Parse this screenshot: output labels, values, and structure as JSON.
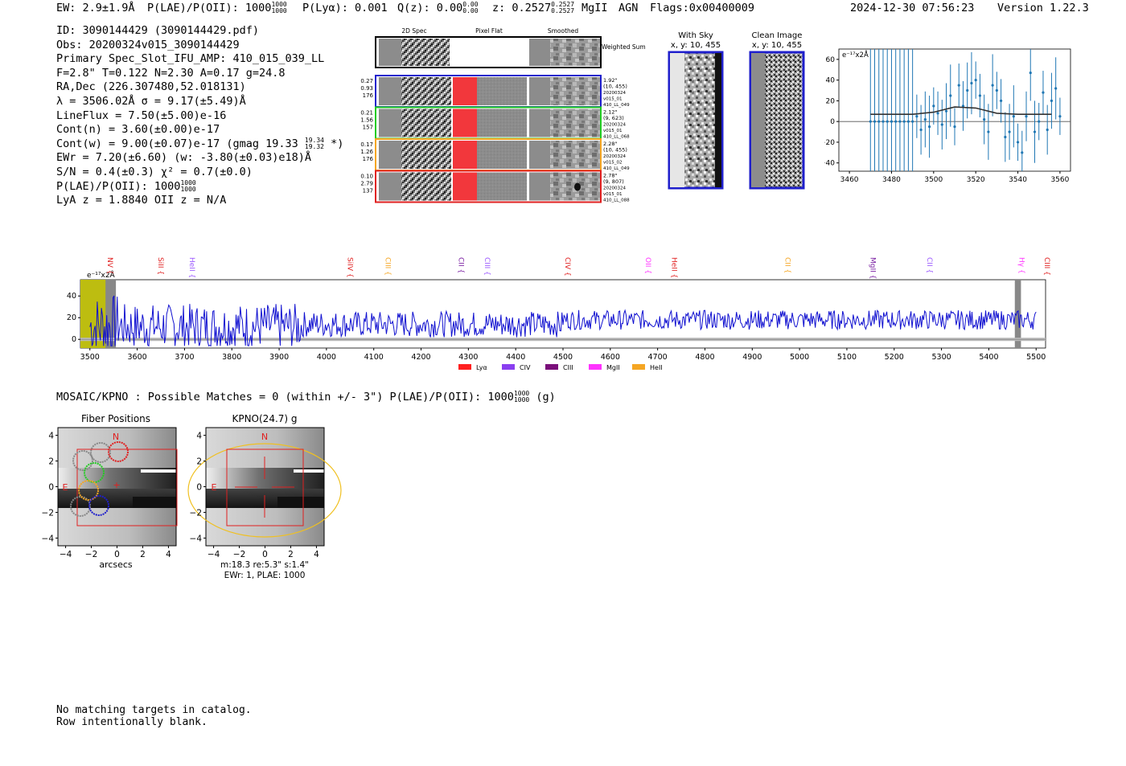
{
  "header": {
    "ew": "EW: 2.9±1.9Å",
    "plae_label": "P(LAE)/P(OII): 1000",
    "plae_hi": "1000",
    "plae_lo": "1000",
    "plya": "P(Lyα): 0.001",
    "qz_label": "Q(z): 0.00",
    "qz_hi": "0.00",
    "qz_lo": "0.00",
    "z_label": "z: 0.2527",
    "z_hi": "0.2527",
    "z_lo": "0.2527",
    "line": "MgII",
    "agn": "AGN",
    "flags": "Flags:0x00400009",
    "timestamp": "2024-12-30 07:56:23",
    "version": "Version 1.22.3"
  },
  "info": {
    "id": "ID: 3090144429 (3090144429.pdf)",
    "obs": "Obs: 20200324v015_3090144429",
    "primary": "Primary Spec_Slot_IFU_AMP: 410_015_039_LL",
    "params": "F=2.8\"  T=0.122  N=2.30  A=0.17  g=24.8",
    "radec": "RA,Dec (226.307480,52.018131)",
    "lambda": "λ = 3506.02Å  σ = 9.17(±5.49)Å",
    "lineflux": "LineFlux = 7.50(±5.00)e-16",
    "contn": "Cont(n) = 3.60(±0.00)e-17",
    "contw_label": "Cont(w) = 9.00(±0.07)e-17 (gmag 19.33",
    "contw_hi": "19.34",
    "contw_lo": "19.32",
    "contw_end": "*)",
    "ewr": "EWr = 7.20(±6.60) (w: -3.80(±0.03)e18)Å",
    "sn": "S/N = 0.4(±0.3)  χ² = 0.7(±0.0)",
    "plae_label": "P(LAE)/P(OII): 1000",
    "plae_hi": "1000",
    "plae_lo": "1000",
    "lyaz": "LyA z = 1.8840  OII z = N/A"
  },
  "cutouts": {
    "col_headers": [
      "2D Spec",
      "Pixel Flat",
      "Smoothed"
    ],
    "weighted_sum": "Weighted Sum",
    "rows": [
      {
        "left": [
          "0.27",
          "0.93",
          "176"
        ],
        "right": [
          "1.92\"",
          "(10, 455)",
          "20200324",
          "v015_01",
          "410_LL_049"
        ],
        "color": "#1f1fcc"
      },
      {
        "left": [
          "0.21",
          "1.56",
          "157"
        ],
        "right": [
          "2.12\"",
          "(9, 623)",
          "20200324",
          "v015_01",
          "410_LL_068"
        ],
        "color": "#22cc22"
      },
      {
        "left": [
          "0.17",
          "1.26",
          "176"
        ],
        "right": [
          "2.28\"",
          "(10, 455)",
          "20200324",
          "v015_02",
          "410_LL_049"
        ],
        "color": "#f5a623"
      },
      {
        "left": [
          "0.10",
          "2.79",
          "137"
        ],
        "right": [
          "2.78\"",
          "(9, 807)",
          "20200324",
          "v015_01",
          "410_LL_088"
        ],
        "color": "#e02020"
      }
    ]
  },
  "sky": {
    "with_sky_title": "With Sky",
    "with_sky_sub": "x, y: 10, 455",
    "clean_title": "Clean Image",
    "clean_sub": "x, y: 10, 455"
  },
  "zoom_chart": {
    "unit": "e⁻¹⁷x2Å",
    "x_ticks": [
      "3460",
      "3480",
      "3500",
      "3520",
      "3540",
      "3560"
    ],
    "y_ticks": [
      "60",
      "40",
      "20",
      "0",
      "−20",
      "−40"
    ]
  },
  "full_spectrum": {
    "unit": "e⁻¹⁷x2Å",
    "x_ticks": [
      "3500",
      "3600",
      "3700",
      "3800",
      "3900",
      "4000",
      "4100",
      "4200",
      "4300",
      "4400",
      "4500",
      "4600",
      "4700",
      "4800",
      "4900",
      "5000",
      "5100",
      "5200",
      "5300",
      "5400",
      "5500"
    ],
    "y_ticks": [
      "40",
      "20",
      "0"
    ],
    "line_labels": [
      {
        "name": "NV",
        "color": "#e02020"
      },
      {
        "name": "SiII",
        "color": "#e02020"
      },
      {
        "name": "HeII",
        "color": "#9b59ff"
      },
      {
        "name": "SiIV",
        "color": "#e02020"
      },
      {
        "name": "CIII",
        "color": "#f5a623"
      },
      {
        "name": "CII",
        "color": "#7a1fa2"
      },
      {
        "name": "CIII",
        "color": "#9b59ff"
      },
      {
        "name": "CIV",
        "color": "#e02020"
      },
      {
        "name": "OII",
        "color": "#ff33ff"
      },
      {
        "name": "HeII",
        "color": "#e02020"
      },
      {
        "name": "CII",
        "color": "#f5a623"
      },
      {
        "name": "MgII",
        "color": "#7a1fa2"
      },
      {
        "name": "CII",
        "color": "#9b59ff"
      },
      {
        "name": "Hγ",
        "color": "#ff33ff"
      },
      {
        "name": "CIII",
        "color": "#e02020"
      }
    ],
    "legend": [
      {
        "name": "Lyα",
        "color": "#ff2020"
      },
      {
        "name": "CIV",
        "color": "#8a3ff0"
      },
      {
        "name": "CIII",
        "color": "#7a0f7a"
      },
      {
        "name": "MgII",
        "color": "#ff33ff"
      },
      {
        "name": "HeII",
        "color": "#f5a623"
      }
    ]
  },
  "catalog": {
    "text": "MOSAIC/KPNO : Possible Matches = 0 (within +/- 3\")  P(LAE)/P(OII): 1000",
    "hi": "1000",
    "lo": "1000",
    "band": "(g)"
  },
  "fiber_panel": {
    "title": "Fiber Positions",
    "xlabel": "arcsecs",
    "north": "N",
    "east": "E",
    "ticks": [
      "−4",
      "−2",
      "0",
      "2",
      "4"
    ],
    "y_ticks": [
      "4",
      "2",
      "0",
      "−2",
      "−4"
    ]
  },
  "kpno_panel": {
    "title": "KPNO(24.7) g",
    "north": "N",
    "east": "E",
    "ticks": [
      "−4",
      "−2",
      "0",
      "2",
      "4"
    ],
    "y_ticks": [
      "4",
      "2",
      "0",
      "−2",
      "−4"
    ],
    "stats1": "m:18.3  re:5.3\"  s:1.4\"",
    "stats2": "EWr: 1, PLAE: 1000"
  },
  "footer": {
    "line1": "No matching targets in catalog.",
    "line2": "Row intentionally blank."
  },
  "chart_data": [
    {
      "type": "scatter",
      "title": "",
      "ylabel": "e⁻¹⁷x2Å",
      "xlabel": "",
      "xlim": [
        3455,
        3565
      ],
      "ylim": [
        -48,
        70
      ],
      "x": [
        3470,
        3472,
        3474,
        3476,
        3478,
        3480,
        3482,
        3484,
        3486,
        3488,
        3490,
        3492,
        3494,
        3496,
        3498,
        3500,
        3502,
        3504,
        3506,
        3508,
        3510,
        3512,
        3514,
        3516,
        3518,
        3520,
        3522,
        3524,
        3526,
        3528,
        3530,
        3532,
        3534,
        3536,
        3538,
        3540,
        3542,
        3544,
        3546,
        3548,
        3550,
        3552,
        3554,
        3556,
        3558,
        3560
      ],
      "y": [
        0,
        0,
        0,
        0,
        0,
        0,
        0,
        0,
        0,
        0,
        0,
        5,
        -8,
        2,
        -5,
        15,
        8,
        -3,
        10,
        25,
        -5,
        35,
        15,
        30,
        37,
        40,
        25,
        2,
        -10,
        35,
        30,
        20,
        -15,
        -10,
        5,
        -20,
        -30,
        5,
        47,
        -10,
        0,
        28,
        -8,
        20,
        32,
        5
      ],
      "series": [
        {
          "name": "model",
          "x": [
            3470,
            3490,
            3500,
            3510,
            3520,
            3530,
            3540,
            3550,
            3556
          ],
          "y": [
            7,
            7,
            9,
            14,
            13,
            8,
            7,
            7,
            7
          ]
        }
      ]
    },
    {
      "type": "line",
      "title": "",
      "ylabel": "e⁻¹⁷x2Å",
      "xlabel": "",
      "xlim": [
        3480,
        5520
      ],
      "ylim": [
        -8,
        55
      ],
      "x_range": [
        3500,
        5500
      ],
      "series": [
        {
          "name": "spectrum",
          "description": "noisy continuum ~15-25"
        }
      ],
      "line_markers": [
        3533,
        3640,
        3706,
        4040,
        4120,
        4275,
        4330,
        4500,
        4670,
        4725,
        4965,
        5145,
        5265,
        5460,
        5530
      ]
    }
  ]
}
